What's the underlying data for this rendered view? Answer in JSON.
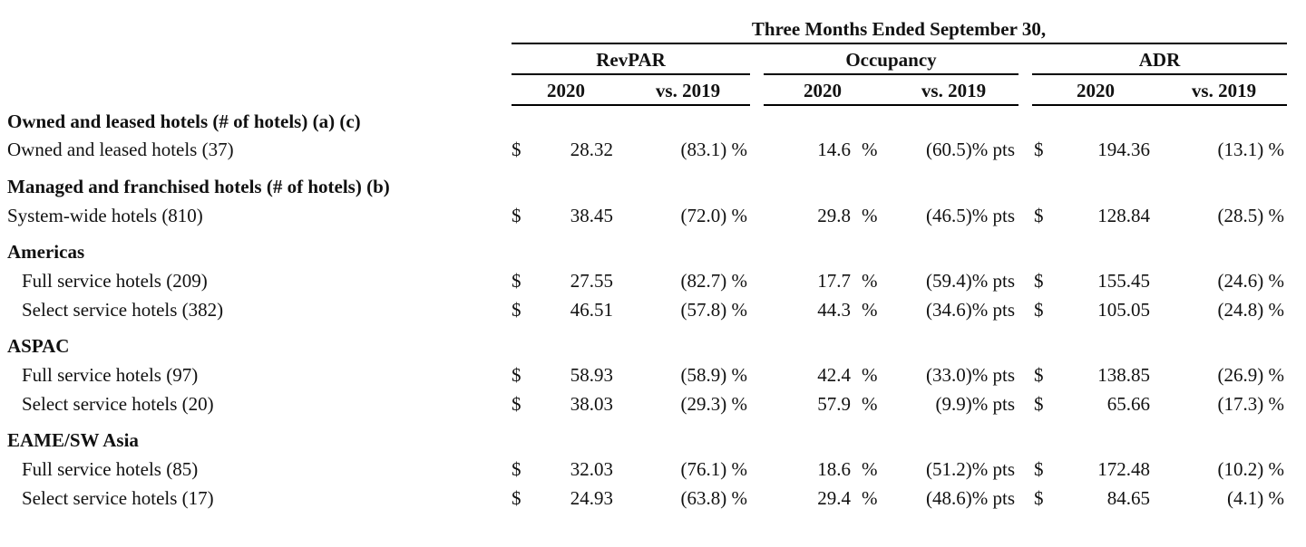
{
  "header": {
    "period": "Three Months Ended September 30,",
    "groups": [
      {
        "label": "RevPAR",
        "col_year": "2020",
        "col_change": "vs. 2019"
      },
      {
        "label": "Occupancy",
        "col_year": "2020",
        "col_change": "vs. 2019"
      },
      {
        "label": "ADR",
        "col_year": "2020",
        "col_change": "vs. 2019"
      }
    ]
  },
  "rows": [
    {
      "type": "section",
      "label": "Owned and leased hotels (# of hotels) (a) (c)"
    },
    {
      "type": "data",
      "label": "Owned and leased hotels (37)",
      "indent": false,
      "revpar_cur": "$",
      "revpar": "28.32",
      "revpar_chg": "(83.1) %",
      "occ": "14.6",
      "occ_pct": "%",
      "occ_chg": "(60.5)% pts",
      "adr_cur": "$",
      "adr": "194.36",
      "adr_chg": "(13.1) %"
    },
    {
      "type": "section",
      "label": "Managed and franchised hotels (# of hotels) (b)"
    },
    {
      "type": "data",
      "label": "System-wide hotels (810)",
      "indent": false,
      "revpar_cur": "$",
      "revpar": "38.45",
      "revpar_chg": "(72.0) %",
      "occ": "29.8",
      "occ_pct": "%",
      "occ_chg": "(46.5)% pts",
      "adr_cur": "$",
      "adr": "128.84",
      "adr_chg": "(28.5) %"
    },
    {
      "type": "section",
      "label": "Americas"
    },
    {
      "type": "data",
      "label": "Full service hotels (209)",
      "indent": true,
      "revpar_cur": "$",
      "revpar": "27.55",
      "revpar_chg": "(82.7) %",
      "occ": "17.7",
      "occ_pct": "%",
      "occ_chg": "(59.4)% pts",
      "adr_cur": "$",
      "adr": "155.45",
      "adr_chg": "(24.6) %"
    },
    {
      "type": "data",
      "label": "Select service hotels (382)",
      "indent": true,
      "revpar_cur": "$",
      "revpar": "46.51",
      "revpar_chg": "(57.8) %",
      "occ": "44.3",
      "occ_pct": "%",
      "occ_chg": "(34.6)% pts",
      "adr_cur": "$",
      "adr": "105.05",
      "adr_chg": "(24.8) %"
    },
    {
      "type": "section",
      "label": "ASPAC"
    },
    {
      "type": "data",
      "label": "Full service hotels (97)",
      "indent": true,
      "revpar_cur": "$",
      "revpar": "58.93",
      "revpar_chg": "(58.9) %",
      "occ": "42.4",
      "occ_pct": "%",
      "occ_chg": "(33.0)% pts",
      "adr_cur": "$",
      "adr": "138.85",
      "adr_chg": "(26.9) %"
    },
    {
      "type": "data",
      "label": "Select service hotels (20)",
      "indent": true,
      "revpar_cur": "$",
      "revpar": "38.03",
      "revpar_chg": "(29.3) %",
      "occ": "57.9",
      "occ_pct": "%",
      "occ_chg": "(9.9)% pts",
      "adr_cur": "$",
      "adr": "65.66",
      "adr_chg": "(17.3) %"
    },
    {
      "type": "section",
      "label": "EAME/SW Asia"
    },
    {
      "type": "data",
      "label": "Full service hotels (85)",
      "indent": true,
      "revpar_cur": "$",
      "revpar": "32.03",
      "revpar_chg": "(76.1) %",
      "occ": "18.6",
      "occ_pct": "%",
      "occ_chg": "(51.2)% pts",
      "adr_cur": "$",
      "adr": "172.48",
      "adr_chg": "(10.2) %"
    },
    {
      "type": "data",
      "label": "Select service hotels (17)",
      "indent": true,
      "revpar_cur": "$",
      "revpar": "24.93",
      "revpar_chg": "(63.8) %",
      "occ": "29.4",
      "occ_pct": "%",
      "occ_chg": "(48.6)% pts",
      "adr_cur": "$",
      "adr": "84.65",
      "adr_chg": "(4.1) %"
    }
  ]
}
